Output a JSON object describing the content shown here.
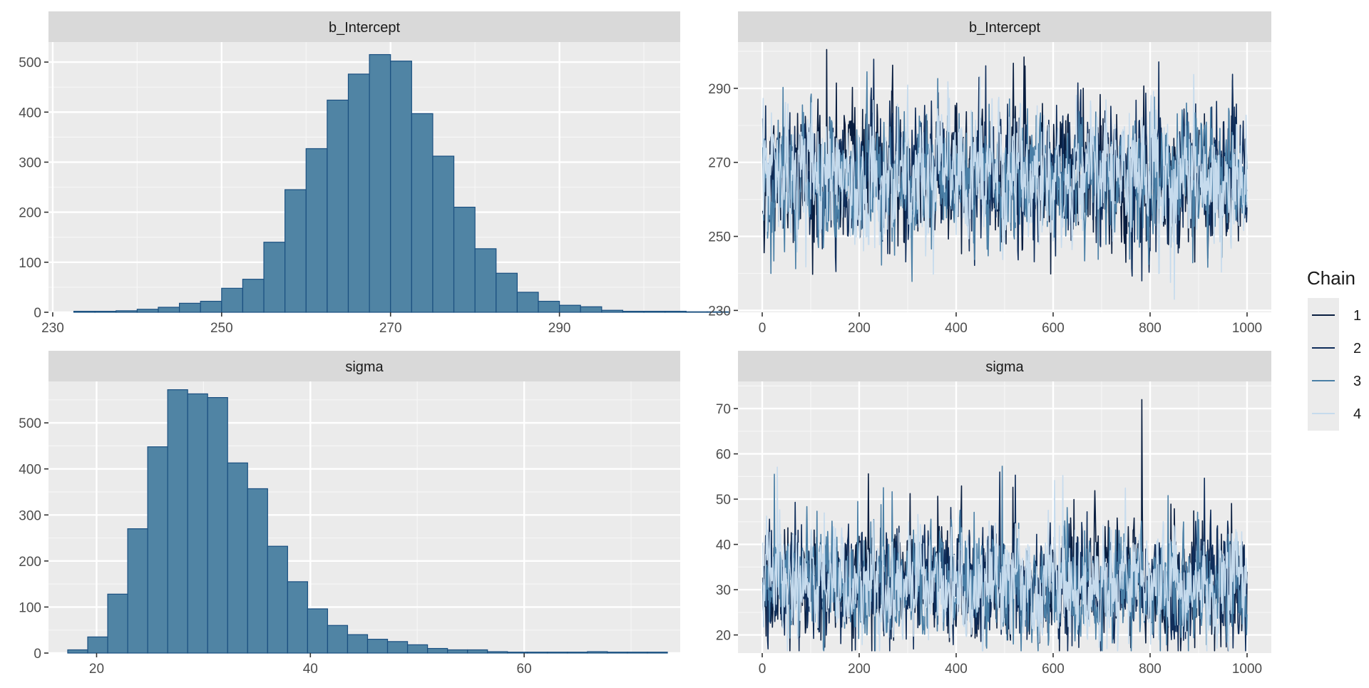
{
  "legend": {
    "title": "Chain",
    "entries": [
      "1",
      "2",
      "3",
      "4"
    ],
    "colors": [
      "#081d3f",
      "#0f2d5a",
      "#4a7fa6",
      "#c6dbed"
    ]
  },
  "chart_data": [
    {
      "type": "bar",
      "subtype": "histogram",
      "facet_label": "b_Intercept",
      "fill_color": "#5084a4",
      "edge_color": "#1a4f80",
      "xlim": [
        229.5,
        304.3
      ],
      "ylim": [
        0,
        540
      ],
      "xticks": [
        230,
        250,
        270,
        290
      ],
      "yticks": [
        0,
        100,
        200,
        300,
        400,
        500
      ],
      "bin_start": 232.5,
      "bin_width": 2.5,
      "values": [
        2,
        2,
        3,
        6,
        10,
        18,
        22,
        48,
        66,
        140,
        245,
        327,
        424,
        476,
        515,
        502,
        397,
        312,
        210,
        127,
        78,
        40,
        22,
        14,
        11,
        4,
        2,
        2,
        2,
        1,
        1
      ],
      "grid": true
    },
    {
      "type": "line",
      "subtype": "trace",
      "facet_label": "b_Intercept",
      "xlim": [
        -50,
        1050
      ],
      "ylim": [
        229.5,
        302.5
      ],
      "xticks": [
        0,
        200,
        400,
        600,
        800,
        1000
      ],
      "yticks": [
        230,
        250,
        270,
        290
      ],
      "n_iter": 1000,
      "center": 266,
      "sd": 8,
      "series": [
        {
          "name": "1",
          "color": "#081d3f",
          "seed": 11
        },
        {
          "name": "2",
          "color": "#0f2d5a",
          "seed": 23
        },
        {
          "name": "3",
          "color": "#4a7fa6",
          "seed": 37
        },
        {
          "name": "4",
          "color": "#c6dbed",
          "seed": 53
        }
      ],
      "spikes": [
        {
          "x": 133,
          "y": 300.5
        },
        {
          "x": 783,
          "y": 238
        },
        {
          "x": 18,
          "y": 240
        },
        {
          "x": 850,
          "y": 233
        }
      ],
      "grid": true
    },
    {
      "type": "bar",
      "subtype": "histogram",
      "facet_label": "sigma",
      "fill_color": "#5084a4",
      "edge_color": "#1a4f80",
      "xlim": [
        15.5,
        74.6
      ],
      "ylim": [
        0,
        590
      ],
      "xticks": [
        20,
        40,
        60
      ],
      "yticks": [
        0,
        100,
        200,
        300,
        400,
        500
      ],
      "bin_start": 17.3,
      "bin_width": 1.87,
      "values": [
        7,
        35,
        128,
        270,
        448,
        572,
        563,
        555,
        413,
        357,
        232,
        155,
        96,
        60,
        40,
        30,
        25,
        18,
        10,
        7,
        7,
        3,
        2,
        2,
        2,
        2,
        3,
        2,
        2,
        2
      ],
      "grid": true
    },
    {
      "type": "line",
      "subtype": "trace",
      "facet_label": "sigma",
      "xlim": [
        -50,
        1050
      ],
      "ylim": [
        16,
        76
      ],
      "xticks": [
        0,
        200,
        400,
        600,
        800,
        1000
      ],
      "yticks": [
        20,
        30,
        40,
        50,
        60,
        70
      ],
      "n_iter": 1000,
      "center": 30.5,
      "sd": 5.5,
      "series": [
        {
          "name": "1",
          "color": "#081d3f",
          "seed": 71
        },
        {
          "name": "2",
          "color": "#0f2d5a",
          "seed": 89
        },
        {
          "name": "3",
          "color": "#4a7fa6",
          "seed": 97
        },
        {
          "name": "4",
          "color": "#c6dbed",
          "seed": 131
        }
      ],
      "spikes": [
        {
          "x": 783,
          "y": 72
        },
        {
          "x": 490,
          "y": 56
        },
        {
          "x": 25,
          "y": 55.5
        }
      ],
      "grid": true
    }
  ]
}
